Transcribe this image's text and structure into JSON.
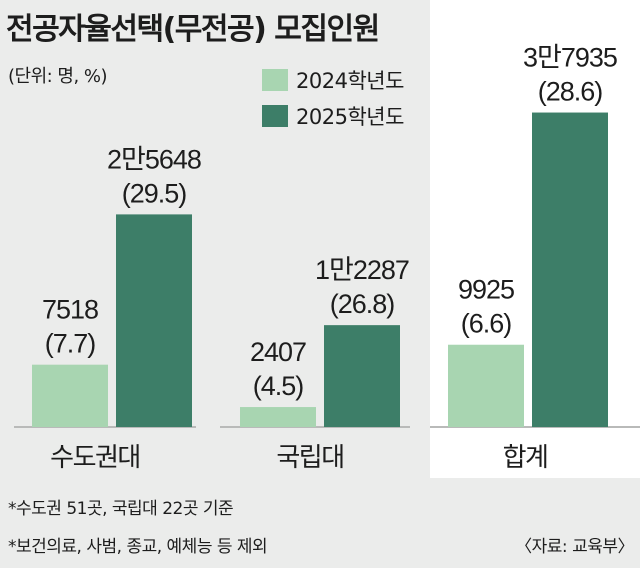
{
  "title": "전공자율선택(무전공) 모집인원",
  "unit_note": "(단위: 명, %)",
  "colors": {
    "y2024": "#a8d5b1",
    "y2025": "#3d7e68",
    "background": "#ebeceb",
    "total_panel": "#ffffff"
  },
  "chart_data": {
    "type": "bar",
    "categories": [
      "수도권대",
      "국립대",
      "합계"
    ],
    "series": [
      {
        "name": "2024학년도",
        "values": [
          7518,
          2407,
          9925
        ],
        "labels": [
          [
            "7518",
            "(7.7)"
          ],
          [
            "2407",
            "(4.5)"
          ],
          [
            "9925",
            "(6.6)"
          ]
        ]
      },
      {
        "name": "2025학년도",
        "values": [
          25648,
          12287,
          37935
        ],
        "labels": [
          [
            "2만5648",
            "(29.5)"
          ],
          [
            "1만2287",
            "(26.8)"
          ],
          [
            "3만7935",
            "(28.6)"
          ]
        ]
      }
    ],
    "shares_percent": {
      "2024학년도": [
        7.7,
        4.5,
        6.6
      ],
      "2025학년도": [
        29.5,
        26.8,
        28.6
      ]
    },
    "legend_position": "top",
    "grid": false,
    "axes_visible": false
  },
  "footnotes": [
    "*수도권 51곳, 국립대 22곳 기준",
    "*보건의료, 사범, 종교, 예체능 등 제외"
  ],
  "source": "〈자료: 교육부〉"
}
